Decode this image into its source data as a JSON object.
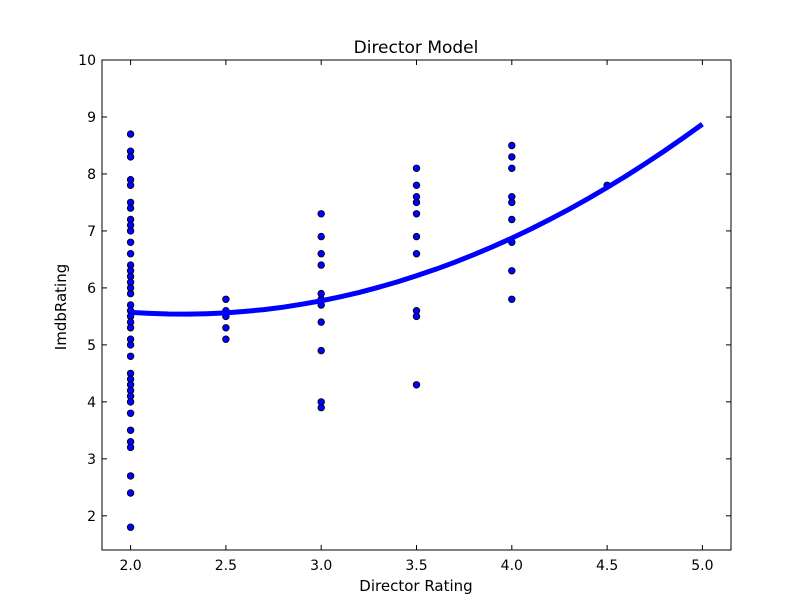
{
  "chart_data": {
    "type": "scatter",
    "title": "Director Model",
    "xlabel": "Director Rating",
    "ylabel": "ImdbRating",
    "xlim": [
      1.85,
      5.15
    ],
    "ylim": [
      1.4,
      10
    ],
    "xticks": [
      "2.0",
      "2.5",
      "3.0",
      "3.5",
      "4.0",
      "4.5",
      "5.0"
    ],
    "yticks": [
      "2",
      "3",
      "4",
      "5",
      "6",
      "7",
      "8",
      "9",
      "10"
    ],
    "grid": false,
    "series": [
      {
        "kind": "scatter",
        "color": "#0000ff",
        "edge_color": "#000000",
        "points": [
          [
            2.0,
            8.7
          ],
          [
            2.0,
            8.4
          ],
          [
            2.0,
            8.3
          ],
          [
            2.0,
            7.9
          ],
          [
            2.0,
            7.8
          ],
          [
            2.0,
            7.5
          ],
          [
            2.0,
            7.4
          ],
          [
            2.0,
            7.2
          ],
          [
            2.0,
            7.1
          ],
          [
            2.0,
            7.0
          ],
          [
            2.0,
            6.8
          ],
          [
            2.0,
            6.6
          ],
          [
            2.0,
            6.4
          ],
          [
            2.0,
            6.3
          ],
          [
            2.0,
            6.2
          ],
          [
            2.0,
            6.1
          ],
          [
            2.0,
            6.0
          ],
          [
            2.0,
            5.9
          ],
          [
            2.0,
            5.7
          ],
          [
            2.0,
            5.6
          ],
          [
            2.0,
            5.5
          ],
          [
            2.0,
            5.4
          ],
          [
            2.0,
            5.3
          ],
          [
            2.0,
            5.1
          ],
          [
            2.0,
            5.0
          ],
          [
            2.0,
            4.8
          ],
          [
            2.0,
            4.5
          ],
          [
            2.0,
            4.4
          ],
          [
            2.0,
            4.3
          ],
          [
            2.0,
            4.2
          ],
          [
            2.0,
            4.1
          ],
          [
            2.0,
            4.0
          ],
          [
            2.0,
            3.8
          ],
          [
            2.0,
            3.5
          ],
          [
            2.0,
            3.3
          ],
          [
            2.0,
            3.2
          ],
          [
            2.0,
            2.7
          ],
          [
            2.0,
            2.4
          ],
          [
            2.0,
            1.8
          ],
          [
            2.5,
            5.8
          ],
          [
            2.5,
            5.6
          ],
          [
            2.5,
            5.5
          ],
          [
            2.5,
            5.3
          ],
          [
            2.5,
            5.1
          ],
          [
            3.0,
            7.3
          ],
          [
            3.0,
            6.9
          ],
          [
            3.0,
            6.6
          ],
          [
            3.0,
            6.4
          ],
          [
            3.0,
            5.9
          ],
          [
            3.0,
            5.8
          ],
          [
            3.0,
            5.7
          ],
          [
            3.0,
            5.4
          ],
          [
            3.0,
            4.9
          ],
          [
            3.0,
            4.0
          ],
          [
            3.0,
            3.9
          ],
          [
            3.5,
            8.1
          ],
          [
            3.5,
            7.8
          ],
          [
            3.5,
            7.6
          ],
          [
            3.5,
            7.5
          ],
          [
            3.5,
            7.3
          ],
          [
            3.5,
            6.9
          ],
          [
            3.5,
            6.6
          ],
          [
            3.5,
            5.6
          ],
          [
            3.5,
            5.5
          ],
          [
            3.5,
            4.3
          ],
          [
            4.0,
            8.5
          ],
          [
            4.0,
            8.3
          ],
          [
            4.0,
            8.1
          ],
          [
            4.0,
            7.6
          ],
          [
            4.0,
            7.5
          ],
          [
            4.0,
            7.2
          ],
          [
            4.0,
            6.8
          ],
          [
            4.0,
            6.3
          ],
          [
            4.0,
            5.8
          ],
          [
            4.5,
            7.8
          ]
        ]
      },
      {
        "kind": "line",
        "color": "#0000ff",
        "x": [
          2.0,
          2.1,
          2.2,
          2.3,
          2.4,
          2.5,
          2.6,
          2.7,
          2.8,
          2.9,
          3.0,
          3.1,
          3.2,
          3.3,
          3.4,
          3.5,
          3.6,
          3.7,
          3.8,
          3.9,
          4.0,
          4.1,
          4.2,
          4.3,
          4.4,
          4.5,
          4.6,
          4.7,
          4.8,
          4.9,
          5.0
        ],
        "y": [
          5.57,
          5.553,
          5.542,
          5.54,
          5.547,
          5.562,
          5.587,
          5.62,
          5.662,
          5.714,
          5.774,
          5.844,
          5.922,
          6.01,
          6.106,
          6.212,
          6.326,
          6.45,
          6.582,
          6.724,
          6.874,
          7.034,
          7.202,
          7.38,
          7.566,
          7.762,
          7.966,
          8.18,
          8.402,
          8.634,
          8.874
        ]
      }
    ]
  }
}
